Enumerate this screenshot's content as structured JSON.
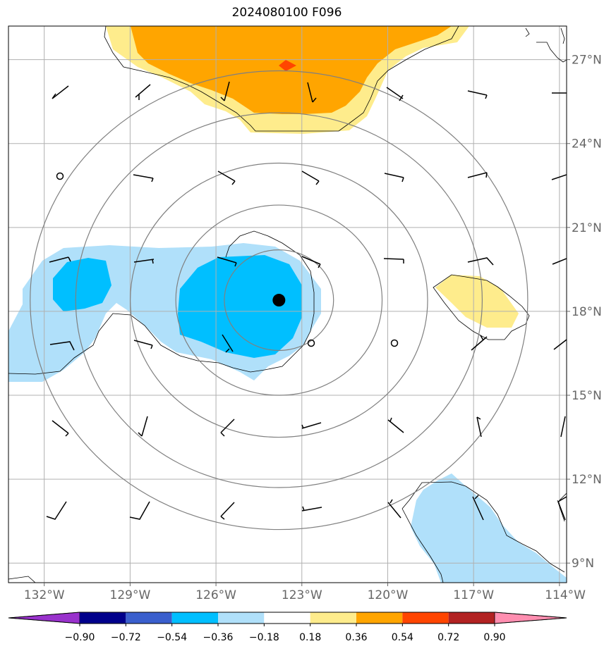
{
  "title": "2024080100 F096",
  "map": {
    "lon_range": [
      -133.25,
      -113.75
    ],
    "lat_range": [
      8.3,
      28.2
    ],
    "lat_ticks": [
      {
        "value": 9,
        "label": "9°N"
      },
      {
        "value": 12,
        "label": "12°N"
      },
      {
        "value": 15,
        "label": "15°N"
      },
      {
        "value": 18,
        "label": "18°N"
      },
      {
        "value": 21,
        "label": "21°N"
      },
      {
        "value": 24,
        "label": "24°N"
      },
      {
        "value": 27,
        "label": "27°N"
      }
    ],
    "lon_ticks": [
      {
        "value": -132,
        "label": "132°W"
      },
      {
        "value": -129,
        "label": "129°W"
      },
      {
        "value": -126,
        "label": "126°W"
      },
      {
        "value": -123,
        "label": "123°W"
      },
      {
        "value": -120,
        "label": "120°W"
      },
      {
        "value": -117,
        "label": "117°W"
      },
      {
        "value": -114,
        "label": "114°W"
      }
    ],
    "center": {
      "lon": -123.8,
      "lat": 18.4
    },
    "range_rings_deg": [
      1.8,
      3.4,
      4.9,
      6.7,
      8.2
    ],
    "colors": {
      "light_blue": "#b0e0fa",
      "cyan": "#00bfff",
      "light_yellow": "#feec8c",
      "orange": "#ffa500",
      "red_orange": "#ff4500",
      "ring": "#808080",
      "grid": "#b0b0b0"
    }
  },
  "colorbar": {
    "ticks": [
      "−0.90",
      "−0.72",
      "−0.54",
      "−0.36",
      "−0.18",
      "0.18",
      "0.36",
      "0.54",
      "0.72",
      "0.90"
    ],
    "colors": [
      "#9932cc",
      "#00008b",
      "#3a5fcd",
      "#00bfff",
      "#b0e0fa",
      "#ffffff",
      "#feec8c",
      "#ffa500",
      "#ff4500",
      "#b22222",
      "#ff8eb0"
    ]
  }
}
